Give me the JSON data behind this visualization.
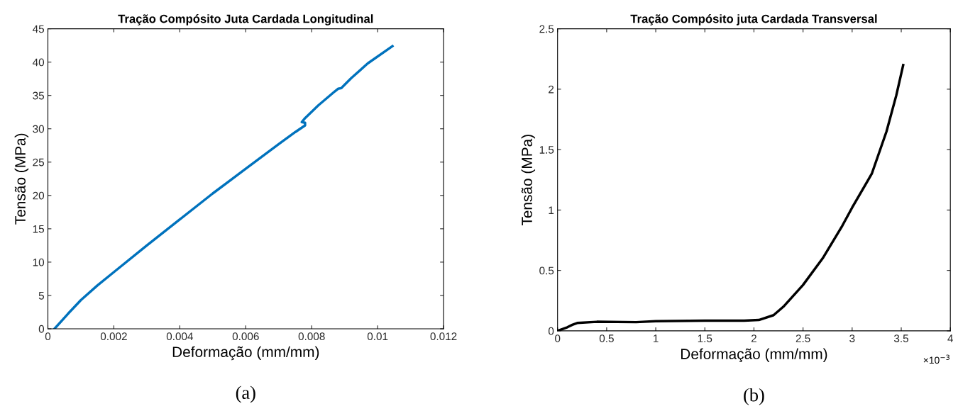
{
  "chart_data": [
    {
      "type": "line",
      "title": "Tração Compósito Juta Cardada Longitudinal",
      "xlabel": "Deformação (mm/mm)",
      "ylabel": "Tensão (MPa)",
      "annotations": [
        "(a)"
      ],
      "xlim": [
        0,
        0.012
      ],
      "xticks": [
        0,
        0.002,
        0.004,
        0.006,
        0.008,
        0.01,
        0.012
      ],
      "ylim": [
        0,
        45
      ],
      "yticks": [
        0,
        5,
        10,
        15,
        20,
        25,
        30,
        35,
        40,
        45
      ],
      "grid": false,
      "line_style": "solid",
      "series": [
        {
          "color": "#0072bd",
          "x": [
            0.0002,
            0.0006,
            0.001,
            0.0015,
            0.002,
            0.003,
            0.004,
            0.005,
            0.006,
            0.007,
            0.0075,
            0.0078,
            0.0078,
            0.0077,
            0.0078,
            0.0082,
            0.0087,
            0.0088,
            0.0089,
            0.0092,
            0.0097,
            0.01045
          ],
          "values": [
            0,
            2.2,
            4.3,
            6.5,
            8.5,
            12.5,
            16.4,
            20.3,
            24,
            27.7,
            29.5,
            30.5,
            30.9,
            31.0,
            31.6,
            33.5,
            35.6,
            36,
            36.1,
            37.6,
            39.8,
            42.4
          ]
        }
      ]
    },
    {
      "type": "line",
      "title": "Tração Compósito juta Cardada Transversal",
      "xlabel": "Deformação (mm/mm)",
      "ylabel": "Tensão (MPa)",
      "annotations": [
        "×10$^{−3}$",
        "(b)"
      ],
      "xlim": [
        0,
        4
      ],
      "xticks": [
        0,
        0.5,
        1,
        1.5,
        2,
        2.5,
        3,
        3.5,
        4
      ],
      "ylim": [
        0,
        2.5
      ],
      "yticks": [
        0,
        0.5,
        1,
        1.5,
        2,
        2.5
      ],
      "grid": false,
      "line_style": "solid",
      "series": [
        {
          "color": "#000000",
          "x": [
            0,
            0.1,
            0.15,
            0.2,
            0.4,
            0.8,
            1,
            1.5,
            1.9,
            2.05,
            2.2,
            2.3,
            2.5,
            2.7,
            2.9,
            3.0,
            3.2,
            3.35,
            3.45,
            3.52
          ],
          "values": [
            0,
            0.03,
            0.05,
            0.065,
            0.075,
            0.072,
            0.08,
            0.085,
            0.085,
            0.09,
            0.13,
            0.2,
            0.38,
            0.6,
            0.87,
            1.02,
            1.3,
            1.65,
            1.95,
            2.2
          ]
        }
      ]
    }
  ]
}
